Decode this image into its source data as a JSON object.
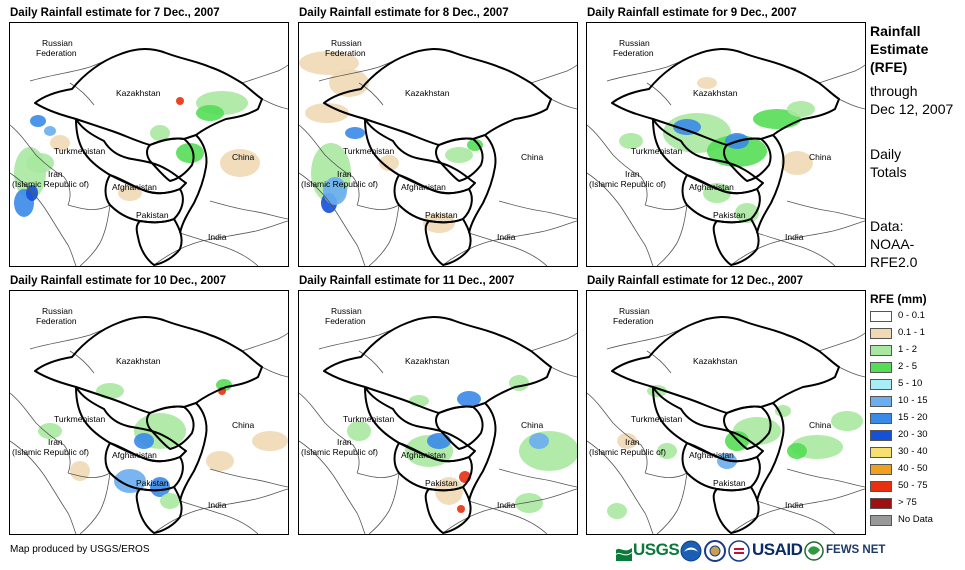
{
  "panels": [
    {
      "title": "Daily Rainfall estimate for 7 Dec., 2007"
    },
    {
      "title": "Daily Rainfall estimate for 8 Dec., 2007"
    },
    {
      "title": "Daily Rainfall estimate for 9 Dec., 2007"
    },
    {
      "title": "Daily Rainfall estimate for 10 Dec., 2007"
    },
    {
      "title": "Daily Rainfall estimate for 11 Dec., 2007"
    },
    {
      "title": "Daily Rainfall estimate for 12 Dec., 2007"
    }
  ],
  "country_labels": {
    "russia_line1": "Russian",
    "russia_line2": "Federation",
    "kazakhstan": "Kazakhstan",
    "turkmenistan": "Turkmenistan",
    "iran_line1": "Iran",
    "iran_line2": "(Islamic Republic of)",
    "afghanistan": "Afghanistan",
    "pakistan": "Pakistan",
    "china": "China",
    "india": "India"
  },
  "side_info": {
    "title_lines": [
      "Rainfall",
      "Estimate",
      "(RFE)"
    ],
    "through_line1": "through",
    "through_line2": "Dec 12, 2007",
    "totals_line1": "Daily",
    "totals_line2": "Totals",
    "data_line1": "Data:",
    "data_line2": "NOAA-",
    "data_line3": "RFE2.0"
  },
  "legend": {
    "title": "RFE (mm)",
    "items": [
      {
        "label": "0 - 0.1",
        "color": "#ffffff"
      },
      {
        "label": "0.1 - 1",
        "color": "#f0d9b5"
      },
      {
        "label": "1 - 2",
        "color": "#a8e8a0"
      },
      {
        "label": "2 - 5",
        "color": "#55dd55"
      },
      {
        "label": "5 - 10",
        "color": "#a8eef8"
      },
      {
        "label": "10 - 15",
        "color": "#6aaef0"
      },
      {
        "label": "15 - 20",
        "color": "#3a8ae8"
      },
      {
        "label": "20 - 30",
        "color": "#1450d8"
      },
      {
        "label": "30 - 40",
        "color": "#f8e070"
      },
      {
        "label": "40 - 50",
        "color": "#f0a020"
      },
      {
        "label": "50 - 75",
        "color": "#e83010"
      },
      {
        "label": "> 75",
        "color": "#a01010"
      },
      {
        "label": "No Data",
        "color": "#999999"
      }
    ]
  },
  "credit": "Map produced by USGS/EROS",
  "logos": {
    "usgs": "USGS",
    "usaid": "USAID",
    "fewsnet": "FEWS NET"
  }
}
